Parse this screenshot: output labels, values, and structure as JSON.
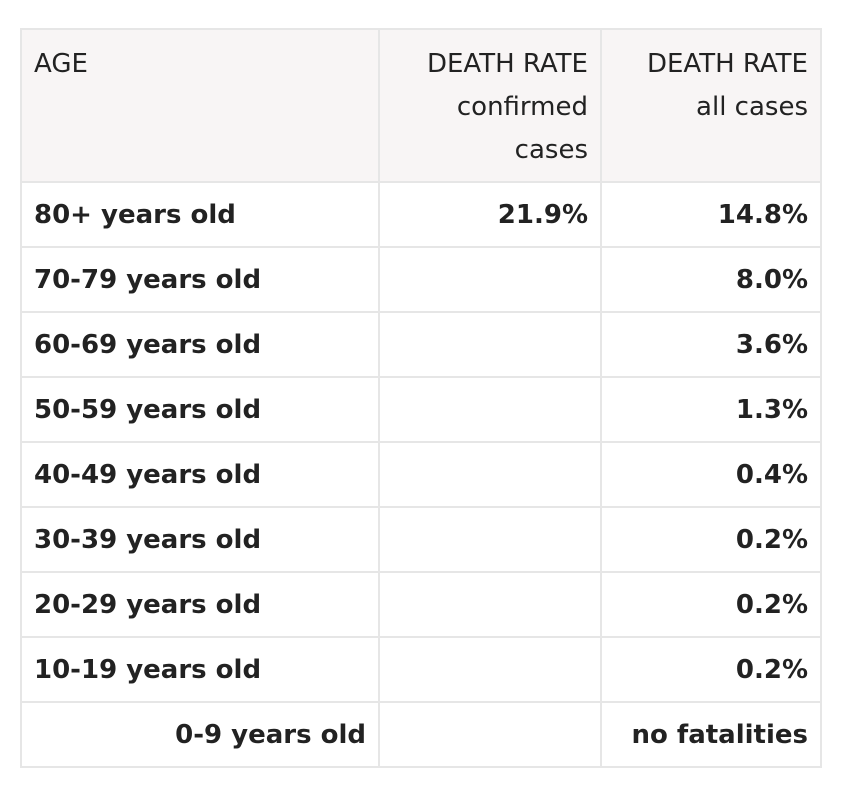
{
  "header": {
    "age": "AGE",
    "confirmed": [
      "DEATH RATE",
      "confirmed",
      "cases"
    ],
    "all": [
      "DEATH RATE",
      "all cases"
    ]
  },
  "rows": [
    {
      "age": "80+ years old",
      "confirmed": "21.9%",
      "all": "14.8%"
    },
    {
      "age": "70-79 years old",
      "confirmed": "",
      "all": "8.0%"
    },
    {
      "age": "60-69 years old",
      "confirmed": "",
      "all": "3.6%"
    },
    {
      "age": "50-59 years old",
      "confirmed": "",
      "all": "1.3%"
    },
    {
      "age": "40-49 years old",
      "confirmed": "",
      "all": "0.4%"
    },
    {
      "age": "30-39 years old",
      "confirmed": "",
      "all": "0.2%"
    },
    {
      "age": "20-29 years old",
      "confirmed": "",
      "all": "0.2%"
    },
    {
      "age": "10-19 years old",
      "confirmed": "",
      "all": "0.2%"
    },
    {
      "age": "0-9 years old",
      "confirmed": "",
      "all": "no fatalities"
    }
  ]
}
